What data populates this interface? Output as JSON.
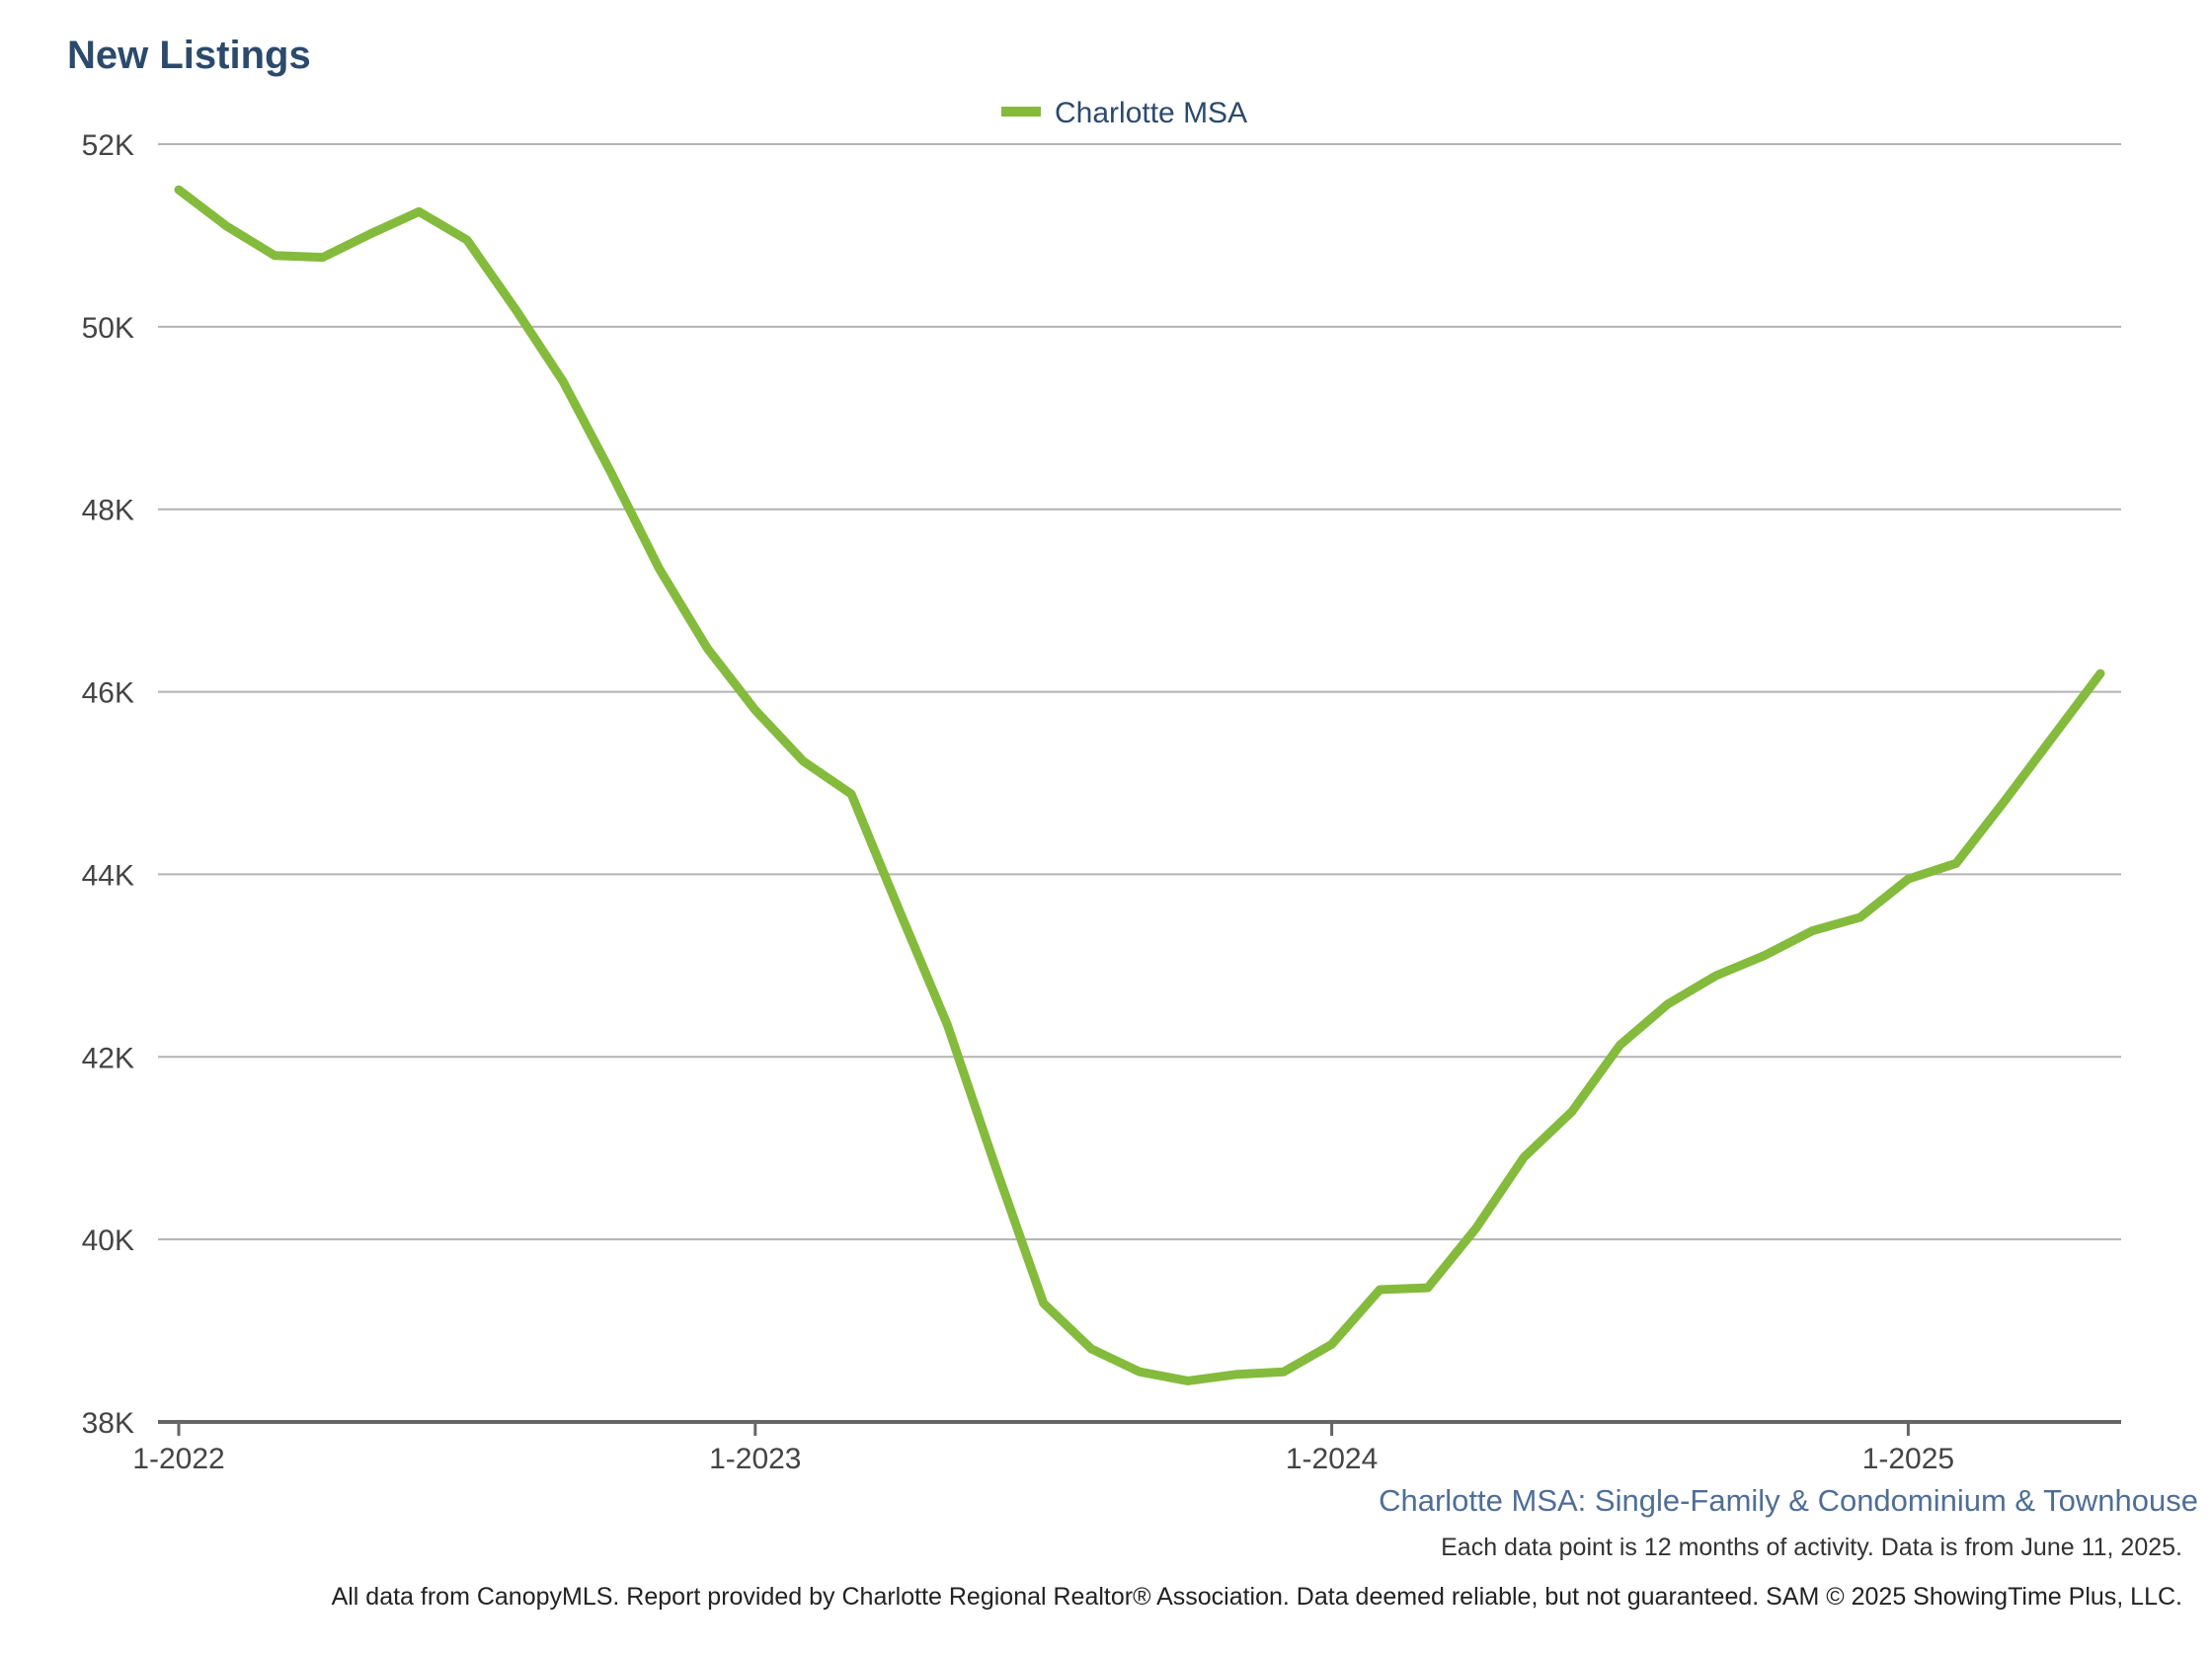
{
  "title": "New Listings",
  "subtitle": "Charlotte MSA: Single-Family & Condominium & Townhouse",
  "note": "Each data point is 12 months of activity. Data is from June 11, 2025.",
  "disclaimer": "All data from CanopyMLS. Report provided by Charlotte Regional Realtor® Association. Data deemed reliable, but not guaranteed. SAM © 2025 ShowingTime Plus, LLC.",
  "colors": {
    "series": "#84bb3c",
    "title": "#2c4a6b",
    "subtitle": "#4f6e96",
    "grid": "#b3b3b3",
    "axis": "#666666"
  },
  "chart_data": {
    "type": "line",
    "title": "New Listings",
    "xlabel": "",
    "ylabel": "",
    "ylim": [
      38000,
      52000
    ],
    "yticks": [
      {
        "value": 38000,
        "label": "38K"
      },
      {
        "value": 40000,
        "label": "40K"
      },
      {
        "value": 42000,
        "label": "42K"
      },
      {
        "value": 44000,
        "label": "44K"
      },
      {
        "value": 46000,
        "label": "46K"
      },
      {
        "value": 48000,
        "label": "48K"
      },
      {
        "value": 50000,
        "label": "50K"
      },
      {
        "value": 52000,
        "label": "52K"
      }
    ],
    "xticks": [
      {
        "value": "1-2022",
        "label": "1-2022"
      },
      {
        "value": "1-2023",
        "label": "1-2023"
      },
      {
        "value": "1-2024",
        "label": "1-2024"
      },
      {
        "value": "1-2025",
        "label": "1-2025"
      }
    ],
    "grid": true,
    "legend_position": "top-center",
    "x": [
      "1-2022",
      "2-2022",
      "3-2022",
      "4-2022",
      "5-2022",
      "6-2022",
      "7-2022",
      "8-2022",
      "9-2022",
      "10-2022",
      "11-2022",
      "12-2022",
      "1-2023",
      "2-2023",
      "3-2023",
      "4-2023",
      "5-2023",
      "6-2023",
      "7-2023",
      "8-2023",
      "9-2023",
      "10-2023",
      "11-2023",
      "12-2023",
      "1-2024",
      "2-2024",
      "3-2024",
      "4-2024",
      "5-2024",
      "6-2024",
      "7-2024",
      "8-2024",
      "9-2024",
      "10-2024",
      "11-2024",
      "12-2024",
      "1-2025",
      "2-2025",
      "3-2025",
      "4-2025",
      "5-2025"
    ],
    "series": [
      {
        "name": "Charlotte MSA",
        "color": "#84bb3c",
        "values": [
          51500,
          51100,
          50780,
          50760,
          51020,
          51260,
          50950,
          50200,
          49400,
          48400,
          47350,
          46480,
          45800,
          45240,
          44880,
          43600,
          42350,
          40800,
          39300,
          38800,
          38550,
          38450,
          38520,
          38550,
          38850,
          39450,
          39470,
          40120,
          40900,
          41400,
          42130,
          42580,
          42890,
          43110,
          43380,
          43530,
          43950,
          44120,
          44800,
          45500,
          46200
        ]
      }
    ]
  }
}
